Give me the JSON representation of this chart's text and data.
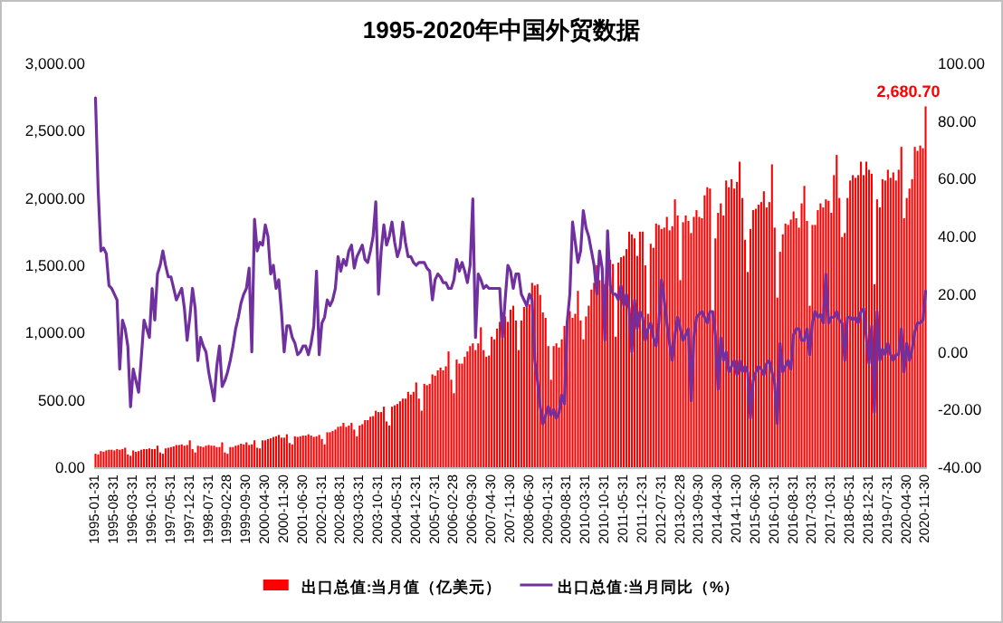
{
  "chart_data": {
    "type": "bar",
    "title": "1995-2020年中国外贸数据",
    "categories": [
      "1995-01-31",
      null,
      null,
      null,
      null,
      null,
      null,
      "1995-08-31",
      null,
      null,
      null,
      null,
      null,
      null,
      "1996-03-31",
      null,
      null,
      null,
      null,
      null,
      null,
      "1996-10-31",
      null,
      null,
      null,
      null,
      null,
      null,
      "1997-05-31",
      null,
      null,
      null,
      null,
      null,
      null,
      "1997-12-31",
      null,
      null,
      null,
      null,
      null,
      null,
      "1998-07-31",
      null,
      null,
      null,
      null,
      null,
      null,
      "1999-02-28",
      null,
      null,
      null,
      null,
      null,
      null,
      "1999-09-30",
      null,
      null,
      null,
      null,
      null,
      null,
      "2000-04-30",
      null,
      null,
      null,
      null,
      null,
      null,
      "2000-11-30",
      null,
      null,
      null,
      null,
      null,
      null,
      "2001-06-30",
      null,
      null,
      null,
      null,
      null,
      null,
      "2002-01-31",
      null,
      null,
      null,
      null,
      null,
      null,
      "2002-08-31",
      null,
      null,
      null,
      null,
      null,
      null,
      "2003-03-31",
      null,
      null,
      null,
      null,
      null,
      null,
      "2003-10-31",
      null,
      null,
      null,
      null,
      null,
      null,
      "2004-05-31",
      null,
      null,
      null,
      null,
      null,
      null,
      "2004-12-31",
      null,
      null,
      null,
      null,
      null,
      null,
      "2005-07-31",
      null,
      null,
      null,
      null,
      null,
      null,
      "2006-02-28",
      null,
      null,
      null,
      null,
      null,
      null,
      "2006-09-30",
      null,
      null,
      null,
      null,
      null,
      null,
      "2007-04-30",
      null,
      null,
      null,
      null,
      null,
      null,
      "2007-11-30",
      null,
      null,
      null,
      null,
      null,
      null,
      "2008-06-30",
      null,
      null,
      null,
      null,
      null,
      null,
      "2009-01-31",
      null,
      null,
      null,
      null,
      null,
      null,
      "2009-08-31",
      null,
      null,
      null,
      null,
      null,
      null,
      "2010-03-31",
      null,
      null,
      null,
      null,
      null,
      null,
      "2010-10-31",
      null,
      null,
      null,
      null,
      null,
      null,
      "2011-05-31",
      null,
      null,
      null,
      null,
      null,
      null,
      "2011-12-31",
      null,
      null,
      null,
      null,
      null,
      null,
      "2012-07-31",
      null,
      null,
      null,
      null,
      null,
      null,
      "2013-02-28",
      null,
      null,
      null,
      null,
      null,
      null,
      "2013-09-30",
      null,
      null,
      null,
      null,
      null,
      null,
      "2014-04-30",
      null,
      null,
      null,
      null,
      null,
      null,
      "2014-11-30",
      null,
      null,
      null,
      null,
      null,
      null,
      "2015-06-30",
      null,
      null,
      null,
      null,
      null,
      null,
      "2016-01-31",
      null,
      null,
      null,
      null,
      null,
      null,
      "2016-08-31",
      null,
      null,
      null,
      null,
      null,
      null,
      "2017-03-31",
      null,
      null,
      null,
      null,
      null,
      null,
      "2017-10-31",
      null,
      null,
      null,
      null,
      null,
      null,
      "2018-05-31",
      null,
      null,
      null,
      null,
      null,
      null,
      "2018-12-31",
      null,
      null,
      null,
      null,
      null,
      null,
      "2019-07-31",
      null,
      null,
      null,
      null,
      null,
      null,
      "2020-04-30",
      null,
      null,
      null,
      null,
      null,
      null,
      "2020-11-30"
    ],
    "series": [
      {
        "name": "出口总值:当月值（亿美元）",
        "color": "#ff0000",
        "values": [
          100,
          95,
          120,
          115,
          125,
          130,
          130,
          125,
          135,
          130,
          135,
          145,
          95,
          85,
          125,
          115,
          120,
          130,
          135,
          135,
          140,
          135,
          135,
          160,
          110,
          100,
          140,
          145,
          150,
          155,
          165,
          165,
          170,
          160,
          165,
          200,
          135,
          110,
          160,
          155,
          150,
          160,
          165,
          160,
          160,
          150,
          150,
          185,
          110,
          100,
          150,
          150,
          160,
          165,
          175,
          170,
          185,
          165,
          170,
          200,
          145,
          140,
          200,
          200,
          210,
          215,
          225,
          230,
          240,
          220,
          220,
          245,
          180,
          170,
          230,
          225,
          230,
          235,
          235,
          245,
          235,
          225,
          230,
          240,
          210,
          170,
          260,
          260,
          270,
          280,
          300,
          305,
          330,
          300,
          310,
          330,
          280,
          230,
          310,
          320,
          350,
          350,
          375,
          380,
          420,
          410,
          410,
          450,
          340,
          310,
          450,
          460,
          470,
          490,
          510,
          510,
          560,
          540,
          560,
          630,
          510,
          420,
          620,
          610,
          620,
          690,
          680,
          720,
          740,
          720,
          750,
          860,
          650,
          550,
          800,
          770,
          770,
          820,
          860,
          900,
          920,
          870,
          920,
          1040,
          870,
          820,
          830,
          970,
          950,
          1030,
          1080,
          1150,
          1120,
          1080,
          1170,
          1200,
          1090,
          870,
          1090,
          1190,
          1210,
          1210,
          1370,
          1350,
          1360,
          1280,
          1150,
          1110,
          900,
          650,
          900,
          920,
          890,
          950,
          1050,
          1040,
          1160,
          1110,
          1140,
          1310,
          1090,
          950,
          1120,
          1200,
          1320,
          1370,
          1500,
          1390,
          1450,
          1360,
          1530,
          1540,
          1510,
          970,
          1520,
          1560,
          1570,
          1620,
          1750,
          1730,
          1700,
          1570,
          1750,
          1750,
          1500,
          1140,
          1660,
          1630,
          1810,
          1800,
          1770,
          1780,
          1860,
          1760,
          1790,
          1990,
          1870,
          1390,
          1820,
          1870,
          1830,
          1740,
          1860,
          1910,
          1860,
          1850,
          2020,
          2080,
          2070,
          1140,
          1700,
          1890,
          1960,
          1870,
          2130,
          2080,
          2140,
          2070,
          2120,
          2270,
          2000,
          1690,
          1450,
          1770,
          1910,
          1920,
          1950,
          1970,
          2050,
          1930,
          1970,
          2250,
          1780,
          1260,
          1600,
          1730,
          1810,
          1800,
          1840,
          1900,
          1850,
          1780,
          1960,
          2090,
          1830,
          1200,
          1800,
          1800,
          1910,
          1960,
          1930,
          1990,
          1980,
          1890,
          2170,
          2320,
          2000,
          1710,
          1740,
          2000,
          2130,
          2170,
          2150,
          2170,
          2270,
          2170,
          2270,
          2210,
          2180,
          1360,
          1990,
          1930,
          2140,
          2130,
          2210,
          2150,
          2190,
          2130,
          2210,
          2380,
          1850,
          2000,
          2070,
          2140,
          2380,
          2350,
          2390,
          2370,
          2680.7
        ]
      },
      {
        "name": "出口总值:当月同比（%）",
        "type": "line",
        "axis": "y2",
        "color": "#7030a0",
        "values": [
          88,
          56,
          35,
          36,
          34,
          23,
          22,
          20,
          18,
          -6,
          11,
          8,
          2,
          -19,
          -6,
          -10,
          -14,
          -2,
          11,
          8,
          5,
          22,
          11,
          27,
          30,
          35,
          30,
          26,
          26,
          22,
          18,
          20,
          22,
          15,
          4,
          12,
          22,
          15,
          -3,
          5,
          2,
          0,
          -7,
          -12,
          -17,
          -5,
          2,
          -12,
          -10,
          -7,
          -3,
          2,
          8,
          12,
          17,
          20,
          22,
          29,
          0,
          46,
          35,
          38,
          37,
          44,
          40,
          27,
          30,
          22,
          25,
          14,
          0,
          9,
          9,
          5,
          3,
          -1,
          0,
          2,
          2,
          -1,
          3,
          9,
          28,
          -1,
          10,
          12,
          18,
          16,
          18,
          22,
          33,
          28,
          32,
          30,
          35,
          37,
          29,
          33,
          35,
          37,
          32,
          31,
          35,
          40,
          52,
          20,
          35,
          44,
          37,
          40,
          45,
          38,
          33,
          36,
          45,
          38,
          33,
          33,
          31,
          30,
          31,
          31,
          31,
          29,
          28,
          18,
          25,
          27,
          26,
          24,
          24,
          22,
          22,
          25,
          32,
          28,
          31,
          28,
          24,
          30,
          53,
          5,
          27,
          25,
          22,
          23,
          22,
          22,
          22,
          22,
          22,
          5,
          18,
          30,
          28,
          22,
          27,
          27,
          20,
          18,
          16,
          20,
          18,
          -3,
          -10,
          -19,
          -25,
          -22,
          -19,
          -22,
          -20,
          -23,
          -21,
          -15,
          -18,
          10,
          20,
          45,
          38,
          31,
          35,
          49,
          43,
          40,
          35,
          30,
          20,
          35,
          29,
          4,
          42,
          23,
          20,
          20,
          18,
          23,
          16,
          20,
          15,
          0,
          18,
          8,
          14,
          12,
          4,
          8,
          10,
          5,
          2,
          10,
          25,
          18,
          10,
          3,
          -3,
          6,
          12,
          8,
          4,
          6,
          8,
          -17,
          5,
          12,
          13,
          14,
          12,
          10,
          14,
          14,
          6,
          -13,
          5,
          -3,
          0,
          -7,
          -5,
          -3,
          -8,
          -3,
          -7,
          -5,
          -7,
          -23,
          -10,
          -7,
          -5,
          -6,
          -8,
          -4,
          -3,
          -7,
          -11,
          -25,
          3,
          -7,
          -5,
          -3,
          -6,
          6,
          8,
          8,
          4,
          4,
          8,
          -1,
          10,
          14,
          12,
          13,
          10,
          27,
          10,
          12,
          12,
          14,
          11,
          10,
          -3,
          12,
          12,
          11,
          12,
          10,
          14,
          15,
          5,
          -4,
          9,
          -21,
          14,
          -3,
          1,
          -1,
          3,
          -1,
          -3,
          -1,
          -1,
          8,
          -7,
          3,
          -3,
          1,
          7,
          10,
          10,
          11,
          21
        ]
      }
    ],
    "annotations": [
      {
        "text": "2,680.70",
        "x": "2020-11-30",
        "y": 2680.7
      }
    ],
    "ylim": [
      0,
      3000
    ],
    "yticks": [
      {
        "value": 0,
        "label": "0.00"
      },
      {
        "value": 500,
        "label": "500.00"
      },
      {
        "value": 1000,
        "label": "1,000.00"
      },
      {
        "value": 1500,
        "label": "1,500.00"
      },
      {
        "value": 2000,
        "label": "2,000.00"
      },
      {
        "value": 2500,
        "label": "2,500.00"
      },
      {
        "value": 3000,
        "label": "3,000.00"
      }
    ],
    "y2lim": [
      -40,
      100
    ],
    "y2ticks": [
      {
        "value": -40,
        "label": "-40.00"
      },
      {
        "value": -20,
        "label": "-20.00"
      },
      {
        "value": 0,
        "label": "0.00"
      },
      {
        "value": 20,
        "label": "20.00"
      },
      {
        "value": 40,
        "label": "40.00"
      },
      {
        "value": 60,
        "label": "60.00"
      },
      {
        "value": 80,
        "label": "80.00"
      },
      {
        "value": 100,
        "label": "100.00"
      }
    ],
    "legend": "bottom",
    "grid": false
  }
}
